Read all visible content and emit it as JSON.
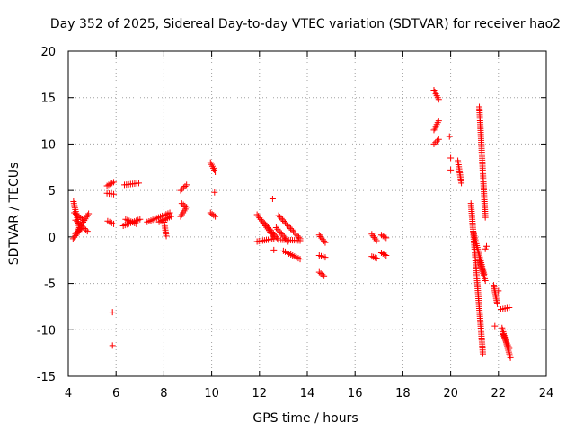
{
  "chart_data": {
    "type": "scatter",
    "title": "Day 352 of 2025, Sidereal Day-to-day VTEC variation (SDTVAR) for receiver hao2",
    "xlabel": "GPS time / hours",
    "ylabel": "SDTVAR / TECUs",
    "xlim": [
      4,
      24
    ],
    "ylim": [
      -15,
      20
    ],
    "xticks": [
      4,
      6,
      8,
      10,
      12,
      14,
      16,
      18,
      20,
      22,
      24
    ],
    "yticks": [
      -15,
      -10,
      -5,
      0,
      5,
      10,
      15,
      20
    ],
    "xtick_labels": [
      "4",
      "6",
      "8",
      "10",
      "12",
      "14",
      "16",
      "18",
      "20",
      "22",
      "24"
    ],
    "ytick_labels": [
      "-15",
      "-10",
      "-5",
      "0",
      "5",
      "10",
      "15",
      "20"
    ],
    "grid": true,
    "marker": "+",
    "color": "#ff0000",
    "segments": [
      {
        "x0": 4.22,
        "x1": 4.48,
        "y0": 3.8,
        "y1": 0.8
      },
      {
        "x0": 4.25,
        "x1": 4.65,
        "y0": 2.6,
        "y1": 1.8
      },
      {
        "x0": 4.3,
        "x1": 4.85,
        "y0": 0.3,
        "y1": 2.5
      },
      {
        "x0": 4.3,
        "x1": 4.8,
        "y0": 1.8,
        "y1": 0.6
      },
      {
        "x0": 4.2,
        "x1": 4.55,
        "y0": -0.2,
        "y1": 0.9
      },
      {
        "x0": 5.62,
        "x1": 5.9,
        "y0": 5.5,
        "y1": 5.9
      },
      {
        "x0": 5.62,
        "x1": 5.9,
        "y0": 4.7,
        "y1": 4.6
      },
      {
        "x0": 5.65,
        "x1": 5.9,
        "y0": 1.7,
        "y1": 1.4
      },
      {
        "x0": 6.35,
        "x1": 6.95,
        "y0": 5.6,
        "y1": 5.8
      },
      {
        "x0": 6.3,
        "x1": 7.0,
        "y0": 1.2,
        "y1": 1.9
      },
      {
        "x0": 6.4,
        "x1": 6.85,
        "y0": 1.9,
        "y1": 1.4
      },
      {
        "x0": 7.3,
        "x1": 8.25,
        "y0": 1.6,
        "y1": 2.6
      },
      {
        "x0": 7.8,
        "x1": 8.3,
        "y0": 1.6,
        "y1": 2.2
      },
      {
        "x0": 8.0,
        "x1": 8.1,
        "y0": 1.8,
        "y1": 0.1
      },
      {
        "x0": 8.7,
        "x1": 8.95,
        "y0": 5.0,
        "y1": 5.6
      },
      {
        "x0": 8.7,
        "x1": 8.9,
        "y0": 2.2,
        "y1": 3.0
      },
      {
        "x0": 8.75,
        "x1": 8.95,
        "y0": 3.6,
        "y1": 3.2
      },
      {
        "x0": 9.95,
        "x1": 10.15,
        "y0": 8.0,
        "y1": 7.0
      },
      {
        "x0": 9.95,
        "x1": 10.15,
        "y0": 2.6,
        "y1": 2.2
      },
      {
        "x0": 11.9,
        "x1": 12.6,
        "y0": 2.4,
        "y1": 0.0
      },
      {
        "x0": 11.9,
        "x1": 12.6,
        "y0": -0.5,
        "y1": -0.2
      },
      {
        "x0": 12.2,
        "x1": 12.8,
        "y0": 1.5,
        "y1": -0.3
      },
      {
        "x0": 12.7,
        "x1": 13.2,
        "y0": 1.0,
        "y1": -0.5
      },
      {
        "x0": 12.8,
        "x1": 13.7,
        "y0": 2.3,
        "y1": -0.2
      },
      {
        "x0": 12.9,
        "x1": 13.7,
        "y0": -0.3,
        "y1": -0.4
      },
      {
        "x0": 13.0,
        "x1": 13.7,
        "y0": -1.5,
        "y1": -2.4
      },
      {
        "x0": 14.5,
        "x1": 14.75,
        "y0": 0.2,
        "y1": -0.6
      },
      {
        "x0": 14.5,
        "x1": 14.75,
        "y0": -2.0,
        "y1": -2.2
      },
      {
        "x0": 14.5,
        "x1": 14.7,
        "y0": -3.8,
        "y1": -4.2
      },
      {
        "x0": 16.7,
        "x1": 16.9,
        "y0": 0.3,
        "y1": -0.4
      },
      {
        "x0": 16.7,
        "x1": 16.9,
        "y0": -2.1,
        "y1": -2.3
      },
      {
        "x0": 17.1,
        "x1": 17.3,
        "y0": 0.2,
        "y1": -0.1
      },
      {
        "x0": 17.1,
        "x1": 17.3,
        "y0": -1.7,
        "y1": -2.0
      },
      {
        "x0": 19.3,
        "x1": 19.5,
        "y0": 15.8,
        "y1": 14.8
      },
      {
        "x0": 19.3,
        "x1": 19.5,
        "y0": 11.5,
        "y1": 12.5
      },
      {
        "x0": 19.3,
        "x1": 19.5,
        "y0": 10.0,
        "y1": 10.5
      },
      {
        "x0": 20.3,
        "x1": 20.45,
        "y0": 8.2,
        "y1": 5.8
      },
      {
        "x0": 20.85,
        "x1": 21.35,
        "y0": 3.6,
        "y1": -12.6
      },
      {
        "x0": 20.95,
        "x1": 21.4,
        "y0": 0.5,
        "y1": -4.0
      },
      {
        "x0": 21.2,
        "x1": 21.45,
        "y0": -2.5,
        "y1": -4.7
      },
      {
        "x0": 21.2,
        "x1": 21.45,
        "y0": 14.0,
        "y1": 2.1
      },
      {
        "x0": 21.8,
        "x1": 21.95,
        "y0": -5.2,
        "y1": -7.2
      },
      {
        "x0": 22.1,
        "x1": 22.45,
        "y0": -7.8,
        "y1": -7.6
      },
      {
        "x0": 22.15,
        "x1": 22.5,
        "y0": -9.8,
        "y1": -13.0
      },
      {
        "x0": 22.2,
        "x1": 22.45,
        "y0": -10.5,
        "y1": -12.0
      }
    ],
    "points": [
      [
        5.85,
        -8.1
      ],
      [
        5.85,
        -11.7
      ],
      [
        10.12,
        4.8
      ],
      [
        12.55,
        4.1
      ],
      [
        12.6,
        -1.4
      ],
      [
        19.95,
        10.8
      ],
      [
        20.0,
        8.5
      ],
      [
        20.0,
        7.2
      ],
      [
        21.45,
        -1.3
      ],
      [
        21.5,
        -1.0
      ],
      [
        21.85,
        -9.6
      ],
      [
        22.0,
        -5.8
      ]
    ]
  }
}
